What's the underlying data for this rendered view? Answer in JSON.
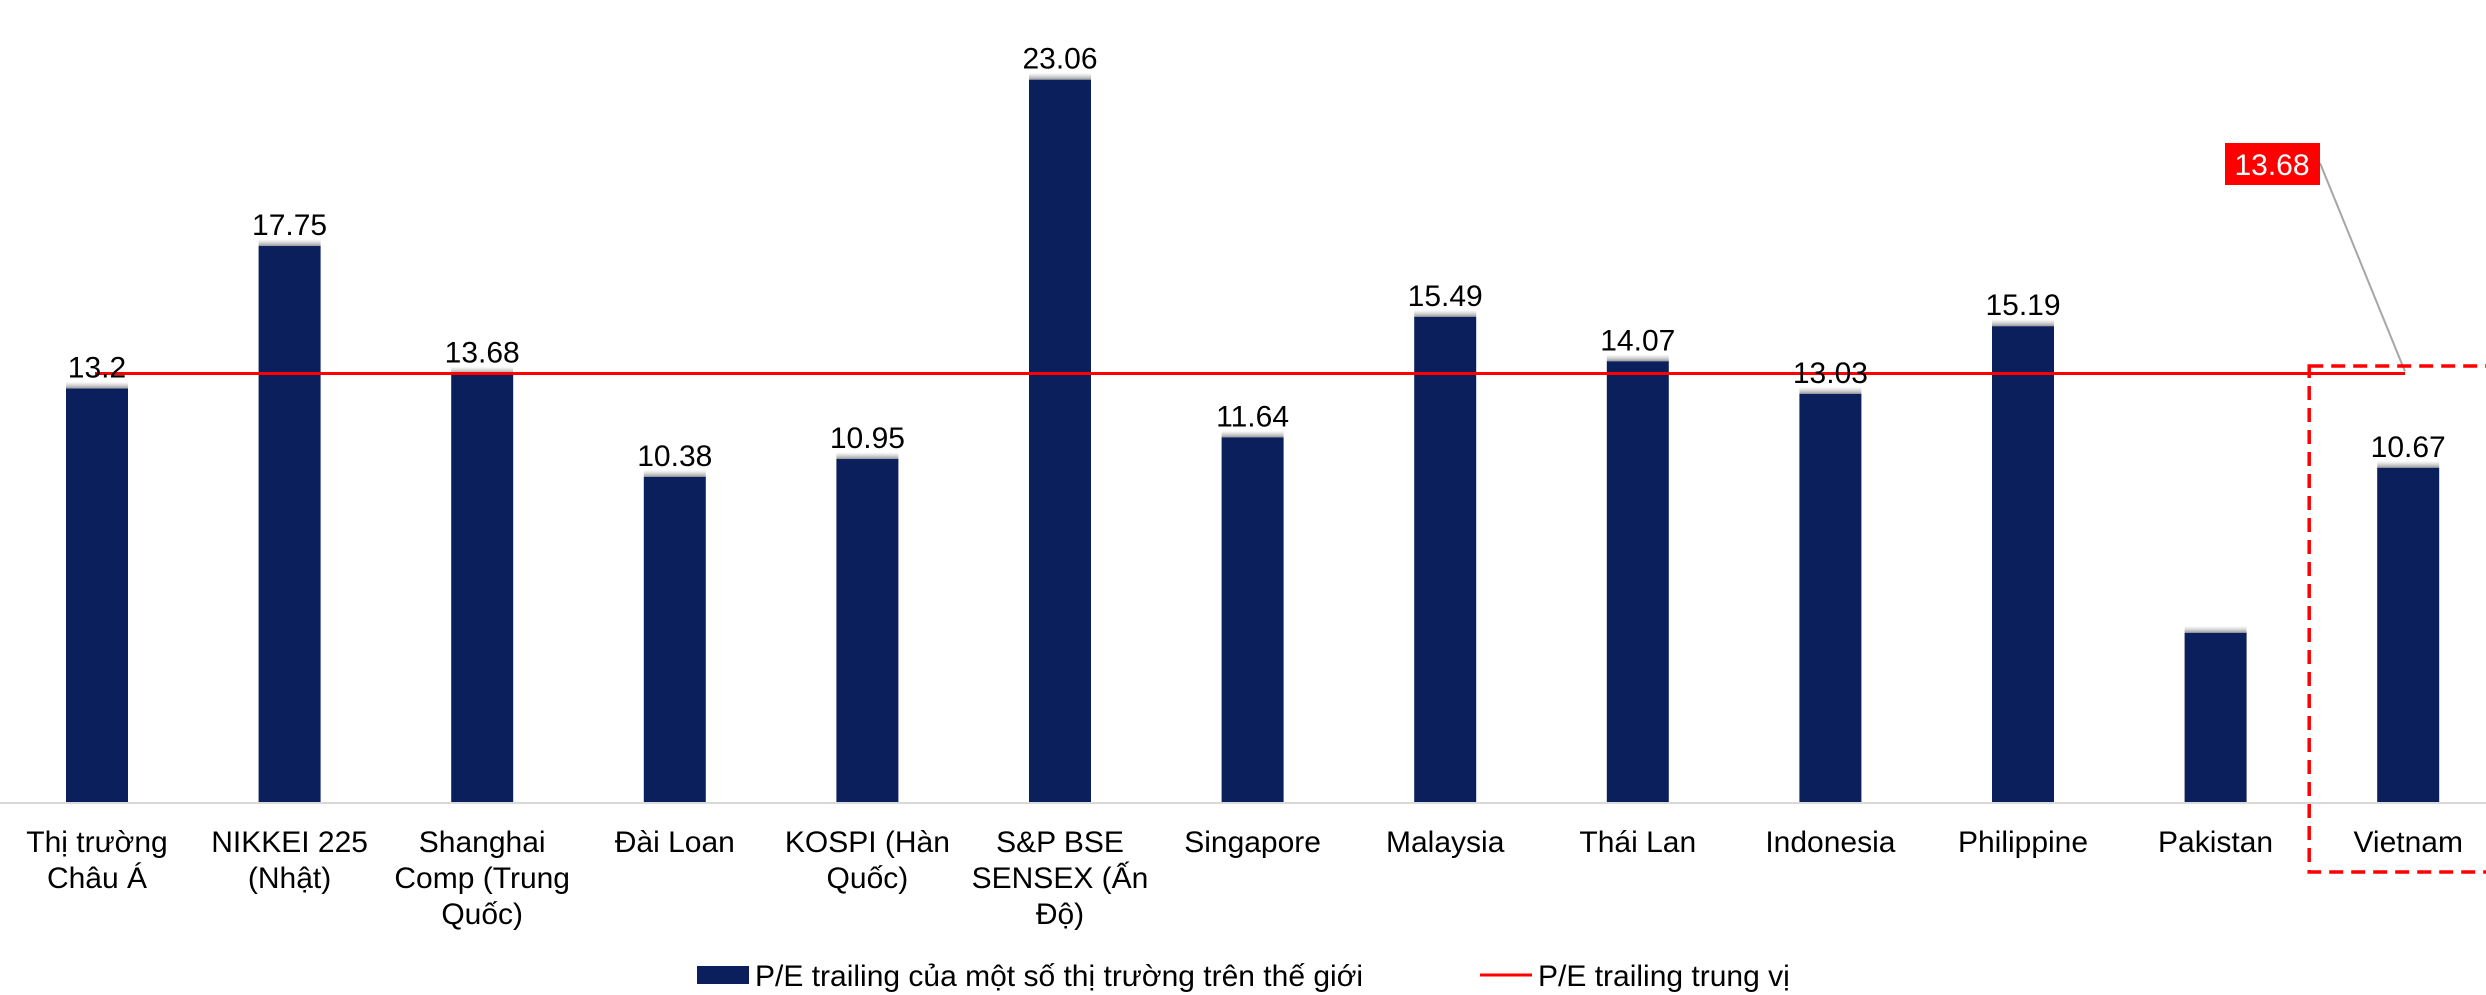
{
  "chart_data": {
    "type": "bar",
    "categories": [
      [
        "Thị trường",
        "Châu Á"
      ],
      [
        "NIKKEI 225",
        "(Nhật)"
      ],
      [
        "Shanghai",
        "Comp (Trung",
        "Quốc)"
      ],
      [
        "Đài Loan"
      ],
      [
        "KOSPI (Hàn",
        "Quốc)"
      ],
      [
        "S&P BSE",
        "SENSEX (Ấn",
        "Độ)"
      ],
      [
        "Singapore"
      ],
      [
        "Malaysia"
      ],
      [
        "Thái Lan"
      ],
      [
        "Indonesia"
      ],
      [
        "Philippine"
      ],
      [
        "Pakistan"
      ],
      [
        "Vietnam"
      ]
    ],
    "series": [
      {
        "name": "P/E trailing của một số thị trường trên thế giới",
        "type": "bar",
        "color": "#0b1f5c",
        "values": [
          13.2,
          17.75,
          13.68,
          10.38,
          10.95,
          23.06,
          11.64,
          15.49,
          14.07,
          13.03,
          15.19,
          5.4,
          10.67
        ],
        "labels": [
          "13.2",
          "17.75",
          "13.68",
          "10.38",
          "10.95",
          "23.06",
          "11.64",
          "15.49",
          "14.07",
          "13.03",
          "15.19",
          "",
          "10.67"
        ]
      },
      {
        "name": "P/E trailing trung vị",
        "type": "line",
        "color": "#ff0000",
        "value": 13.68,
        "label": "13.68"
      }
    ],
    "highlight_category": "Vietnam",
    "highlight_color": "#ff0000",
    "ylim": [
      0,
      24.2
    ],
    "grid": false,
    "legend_position": "bottom"
  }
}
